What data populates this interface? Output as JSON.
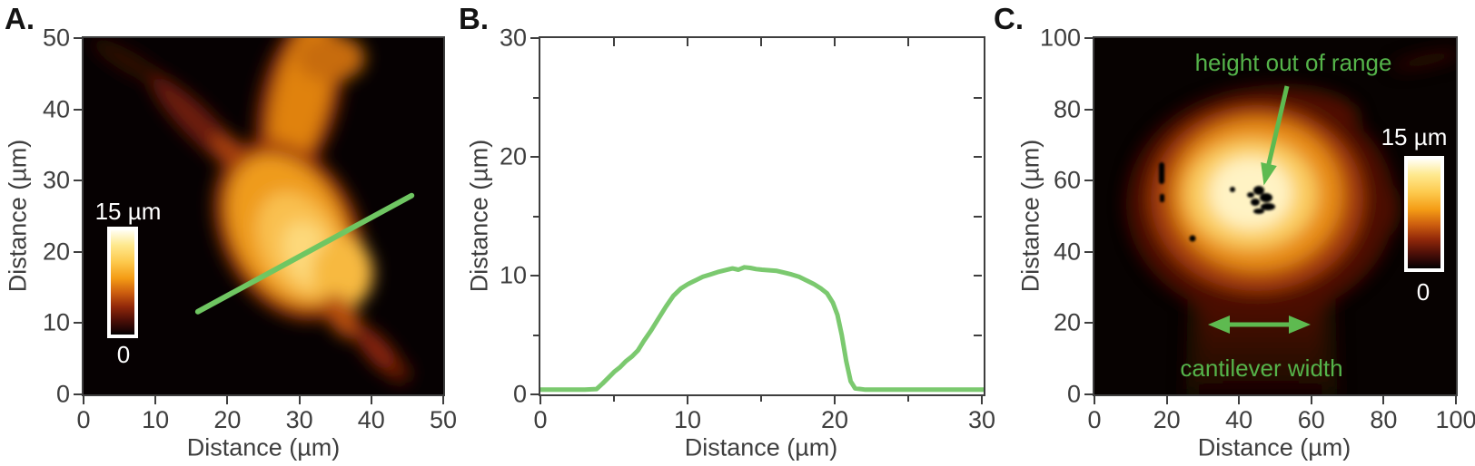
{
  "colors": {
    "axis": "#3e3e3e",
    "panel_letter": "#141414",
    "profile_line_green": "#6fc662",
    "curve_green": "#7bc96f",
    "annotation_text_green": "#55b44a",
    "annotation_arrow_green": "#5eba50",
    "colorbar_label_white": "#ffffff",
    "heatmap_background": "#070201"
  },
  "panels": [
    {
      "letter": "A.",
      "xlabel": "Distance (µm)",
      "ylabel": "Distance (µm)",
      "xticks": [
        "0",
        "10",
        "20",
        "30",
        "40",
        "50"
      ],
      "yticks": [
        "0",
        "10",
        "20",
        "30",
        "40",
        "50"
      ],
      "colorbar": {
        "max_label": "15 µm",
        "min_label": "0"
      }
    },
    {
      "letter": "B.",
      "xlabel": "Distance (µm)",
      "ylabel": "Distance (µm)",
      "xticks": [
        "0",
        "10",
        "20",
        "30"
      ],
      "yticks": [
        "0",
        "10",
        "20",
        "30"
      ],
      "xticks_minor": [
        5,
        15,
        25
      ],
      "yticks_minor": [
        5,
        15,
        25
      ],
      "inner_ticks": [
        5,
        10,
        15,
        20,
        25
      ]
    },
    {
      "letter": "C.",
      "xlabel": "Distance (µm)",
      "ylabel": "Distance (µm)",
      "xticks": [
        "0",
        "20",
        "40",
        "60",
        "80",
        "100"
      ],
      "yticks": [
        "0",
        "20",
        "40",
        "60",
        "80",
        "100"
      ],
      "colorbar": {
        "max_label": "15 µm",
        "min_label": "0"
      },
      "annotations": {
        "height_label": "height out of range",
        "width_label": "cantilever width"
      }
    }
  ],
  "chart_data": [
    {
      "type": "heatmap",
      "panel": "A",
      "xlabel": "Distance (µm)",
      "ylabel": "Distance (µm)",
      "xlim": [
        0,
        50
      ],
      "ylim": [
        0,
        50
      ],
      "colorbar": {
        "min": 0,
        "max": 15,
        "units": "µm",
        "max_label": "15 µm",
        "min_label": "0"
      },
      "overlay_line_um": {
        "x1": 15.9,
        "y1": 11.6,
        "x2": 45.6,
        "y2": 27.9
      }
    },
    {
      "type": "line",
      "panel": "B",
      "xlabel": "Distance (µm)",
      "ylabel": "Distance (µm)",
      "xlim": [
        0,
        30
      ],
      "ylim": [
        0,
        30
      ],
      "x": [
        0,
        1,
        2,
        3,
        3.8,
        4.2,
        4.6,
        5,
        5.4,
        5.8,
        6.2,
        6.6,
        7,
        7.5,
        8,
        8.5,
        9,
        9.5,
        10,
        10.5,
        11,
        11.5,
        12,
        12.5,
        13,
        13.4,
        13.8,
        14.2,
        14.6,
        15,
        15.5,
        16,
        16.5,
        17,
        17.5,
        18,
        18.5,
        19,
        19.4,
        19.8,
        20.1,
        20.4,
        20.7,
        21,
        21.3,
        22,
        24,
        26,
        28,
        30
      ],
      "y": [
        0.4,
        0.4,
        0.4,
        0.4,
        0.45,
        0.9,
        1.4,
        1.9,
        2.3,
        2.8,
        3.2,
        3.7,
        4.5,
        5.4,
        6.4,
        7.4,
        8.3,
        8.9,
        9.3,
        9.6,
        9.9,
        10.1,
        10.3,
        10.45,
        10.6,
        10.5,
        10.7,
        10.65,
        10.55,
        10.5,
        10.45,
        10.4,
        10.25,
        10.1,
        9.9,
        9.6,
        9.3,
        8.9,
        8.5,
        7.7,
        6.7,
        5,
        2.8,
        1.1,
        0.5,
        0.4,
        0.4,
        0.4,
        0.4,
        0.4
      ]
    },
    {
      "type": "heatmap",
      "panel": "C",
      "xlabel": "Distance (µm)",
      "ylabel": "Distance (µm)",
      "xlim": [
        0,
        100
      ],
      "ylim": [
        0,
        100
      ],
      "colorbar": {
        "min": 0,
        "max": 15,
        "units": "µm",
        "max_label": "15 µm",
        "min_label": "0"
      },
      "annotations": [
        {
          "text": "height out of range",
          "arrow_tip_um": [
            47,
            58
          ]
        },
        {
          "text": "cantilever width",
          "arrow_y_um": 20,
          "arrow_span_um": [
            31,
            60
          ]
        }
      ]
    }
  ]
}
